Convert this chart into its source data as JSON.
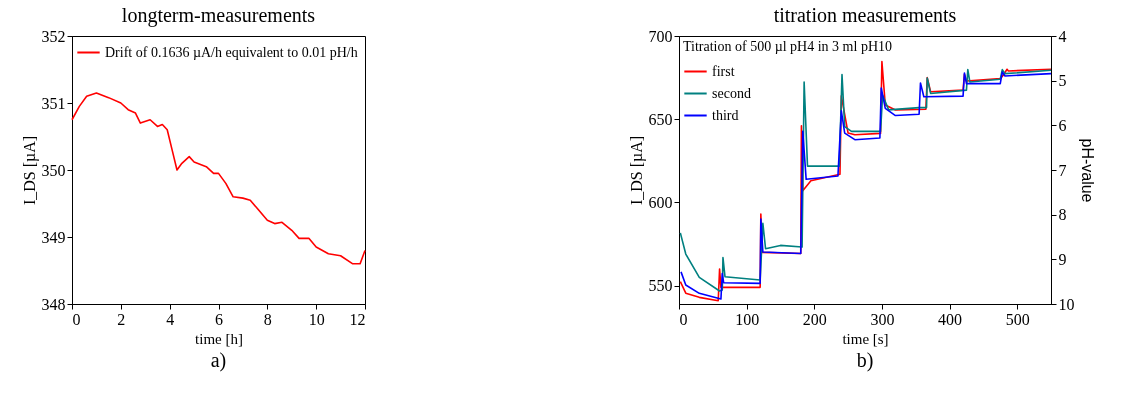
{
  "chart_data": [
    {
      "type": "line",
      "title": "longterm-measurements",
      "xlabel": "time [h]",
      "ylabel": "I_DS [µA]",
      "xlim": [
        0,
        12
      ],
      "xticks": [
        0,
        2,
        4,
        6,
        8,
        10,
        12
      ],
      "ylim": [
        348,
        352
      ],
      "yticks": [
        348,
        349,
        350,
        351,
        352
      ],
      "grid": false,
      "legend": "top left",
      "marker": "none",
      "line_style": "solid",
      "annotations": [
        "a)"
      ],
      "series": [
        {
          "name": "Drift of 0.1636 µA/h equivalent to 0.01 pH/h",
          "color": "#ff0000",
          "x": [
            0,
            0.3,
            0.6,
            1.0,
            1.5,
            2.0,
            2.3,
            2.6,
            2.8,
            3.2,
            3.5,
            3.7,
            3.9,
            4.1,
            4.3,
            4.5,
            4.8,
            5.0,
            5.5,
            5.8,
            6.0,
            6.3,
            6.6,
            7.0,
            7.3,
            7.6,
            8.0,
            8.3,
            8.6,
            9.0,
            9.3,
            9.7,
            10.0,
            10.5,
            11.0,
            11.5,
            11.8,
            12.0
          ],
          "values": [
            350.75,
            350.95,
            351.1,
            351.15,
            351.08,
            351.0,
            350.9,
            350.85,
            350.7,
            350.75,
            350.65,
            350.68,
            350.6,
            350.3,
            350.0,
            350.1,
            350.2,
            350.12,
            350.05,
            349.95,
            349.95,
            349.8,
            349.6,
            349.58,
            349.55,
            349.42,
            349.25,
            349.2,
            349.22,
            349.1,
            348.98,
            348.98,
            348.85,
            348.75,
            348.72,
            348.6,
            348.6,
            348.8
          ]
        }
      ]
    },
    {
      "type": "line",
      "title": "titration measurements",
      "xlabel": "time [s]",
      "ylabel": "I_DS [µA]",
      "y2label": "pH-value",
      "legend_title": "Titration of 500 µl pH4 in 3 ml pH10",
      "xlim": [
        0,
        550
      ],
      "xticks": [
        0,
        100,
        200,
        300,
        400,
        500
      ],
      "ylim": [
        539,
        700
      ],
      "yticks": [
        550,
        600,
        650,
        700
      ],
      "y2lim": [
        10,
        4
      ],
      "y2ticks": [
        4,
        5,
        6,
        7,
        8,
        9,
        10
      ],
      "grid": false,
      "legend": "top left",
      "marker": "none",
      "line_style": "solid",
      "annotations": [
        "b)"
      ],
      "series": [
        {
          "name": "first",
          "color": "#ff0000",
          "x": [
            2,
            10,
            30,
            58,
            60,
            62,
            120,
            121,
            123,
            180,
            181,
            183,
            195,
            238,
            240,
            250,
            260,
            298,
            300,
            305,
            320,
            365,
            367,
            372,
            420,
            422,
            425,
            475,
            480,
            485,
            487,
            550
          ],
          "values": [
            552.4,
            545.5,
            543,
            541,
            560,
            549,
            549,
            593,
            570,
            569.3,
            646,
            607,
            613,
            617,
            664,
            641.7,
            640.7,
            641.5,
            684.7,
            658.5,
            655.6,
            656,
            675,
            666.5,
            667.5,
            677,
            673,
            674.4,
            676.8,
            680,
            679,
            680
          ]
        },
        {
          "name": "second",
          "color": "#008080",
          "x": [
            2,
            10,
            30,
            60,
            64,
            65,
            68,
            120,
            124,
            128,
            150,
            182,
            185,
            190,
            237,
            241,
            245,
            255,
            298,
            301,
            310,
            355,
            366,
            367,
            372,
            425,
            427,
            430,
            475,
            478,
            482,
            550
          ],
          "values": [
            581.7,
            569,
            555,
            546.8,
            547.4,
            566.9,
            555.4,
            553.4,
            587.5,
            572.2,
            574.2,
            573.2,
            672.4,
            621.8,
            621.8,
            676.8,
            645.6,
            642.7,
            642.7,
            664.5,
            655.6,
            657,
            657,
            674.8,
            665.5,
            667.5,
            679.8,
            672.4,
            674,
            679.8,
            677.4,
            679.4
          ]
        },
        {
          "name": "third",
          "color": "#0000ff",
          "x": [
            3,
            10,
            30,
            62,
            64,
            66,
            120,
            121,
            124,
            180,
            183,
            188,
            235,
            240,
            245,
            260,
            297,
            299,
            305,
            320,
            355,
            357,
            362,
            420,
            422,
            425,
            475,
            478,
            482,
            550
          ],
          "values": [
            558.3,
            550.4,
            545.4,
            542,
            557.3,
            551.8,
            551.4,
            590.1,
            570.2,
            569.3,
            642.7,
            613.9,
            615.9,
            655,
            641.7,
            637.7,
            638.7,
            668.8,
            656.5,
            652.2,
            653,
            671.8,
            663.5,
            663.9,
            677.8,
            671.4,
            671.4,
            678.4,
            676,
            677.4
          ]
        }
      ]
    }
  ]
}
